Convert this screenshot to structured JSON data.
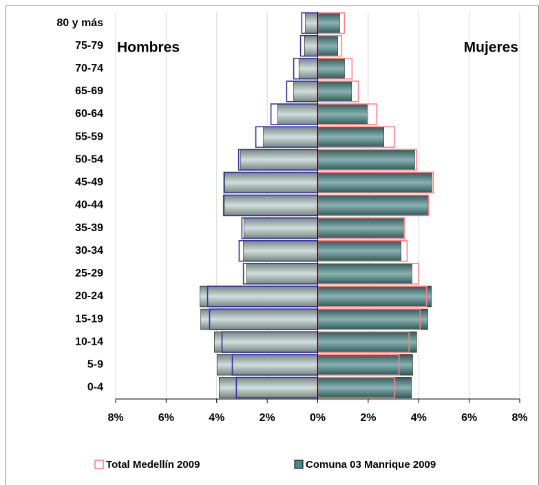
{
  "chart_data": {
    "type": "pyramid",
    "left_label": "Hombres",
    "right_label": "Mujeres",
    "categories": [
      "80 y más",
      "75-79",
      "70-74",
      "65-69",
      "60-64",
      "55-59",
      "50-54",
      "45-49",
      "40-44",
      "35-39",
      "30-34",
      "25-29",
      "20-24",
      "15-19",
      "10-14",
      "5-9",
      "0-4"
    ],
    "series": [
      {
        "name": "Total Medellín 2009",
        "style": "outline",
        "male_color": "#33339a",
        "female_color": "#ff8080",
        "male_values": [
          -0.63,
          -0.68,
          -0.95,
          -1.23,
          -1.85,
          -2.45,
          -3.13,
          -3.71,
          -3.73,
          -3.0,
          -3.11,
          -2.94,
          -4.36,
          -4.28,
          -3.79,
          -3.38,
          -3.22
        ],
        "female_values": [
          1.06,
          0.95,
          1.36,
          1.61,
          2.34,
          3.05,
          3.92,
          4.58,
          4.39,
          3.43,
          3.54,
          4.0,
          4.31,
          4.06,
          3.62,
          3.22,
          3.05
        ]
      },
      {
        "name": "Comuna 03 Manrique 2009",
        "style": "filled",
        "male_color": "#b8cccc",
        "female_color": "#4a8888",
        "male_values": [
          -0.49,
          -0.52,
          -0.74,
          -0.95,
          -1.58,
          -2.15,
          -3.05,
          -3.68,
          -3.68,
          -2.92,
          -2.94,
          -2.81,
          -4.66,
          -4.63,
          -4.09,
          -3.98,
          -3.9
        ],
        "female_values": [
          0.87,
          0.79,
          1.06,
          1.34,
          1.96,
          2.62,
          3.84,
          4.52,
          4.36,
          3.43,
          3.3,
          3.73,
          4.5,
          4.36,
          3.92,
          3.76,
          3.71
        ]
      }
    ],
    "xlim": [
      -8,
      8
    ],
    "xticks": [
      {
        "value": -8,
        "label": "8%"
      },
      {
        "value": -6,
        "label": "6%"
      },
      {
        "value": -4,
        "label": "4%"
      },
      {
        "value": -2,
        "label": "2%"
      },
      {
        "value": 0,
        "label": "0%"
      },
      {
        "value": 2,
        "label": "2%"
      },
      {
        "value": 4,
        "label": "4%"
      },
      {
        "value": 6,
        "label": "6%"
      },
      {
        "value": 8,
        "label": "8%"
      }
    ],
    "grid": true
  }
}
